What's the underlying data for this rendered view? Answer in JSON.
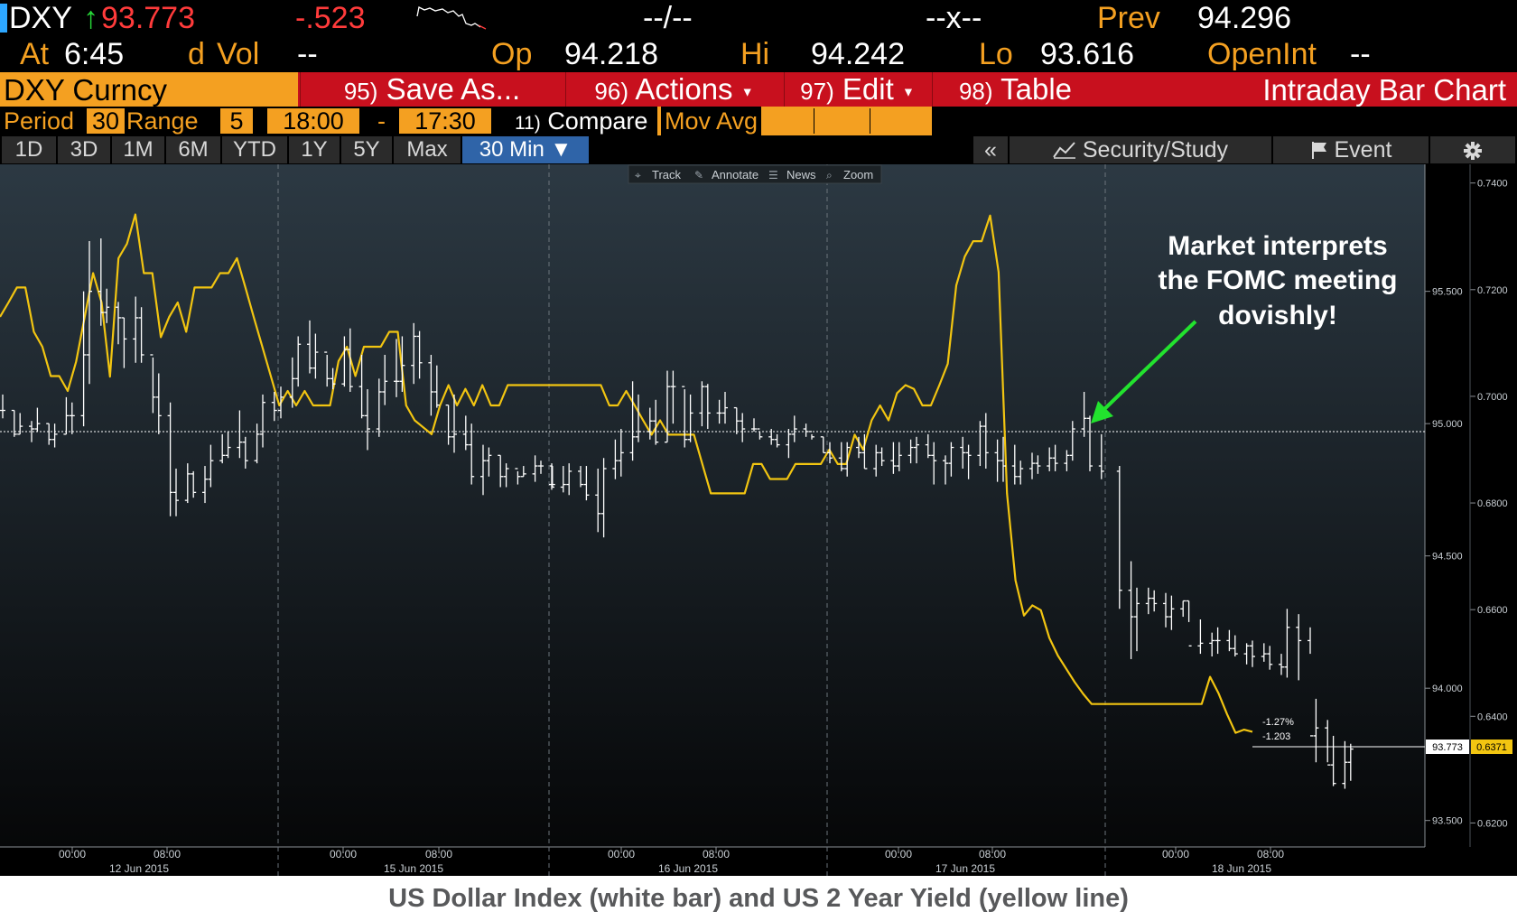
{
  "quote": {
    "ticker": "DXY",
    "arrow": "↑",
    "last": "93.773",
    "change": "-.523",
    "bidask": "--/--",
    "size": "--x--",
    "prev_label": "Prev",
    "prev": "94.296",
    "at_label": "At",
    "time": "6:45",
    "d_label": "d",
    "vol_label": "Vol",
    "vol": "--",
    "open_label": "Op",
    "open": "94.218",
    "high_label": "Hi",
    "high": "94.242",
    "low_label": "Lo",
    "low": "93.616",
    "oi_label": "OpenInt",
    "oi": "--"
  },
  "title_bar": {
    "security": "DXY Curncy",
    "save_num": "95)",
    "save_label": "Save As...",
    "actions_num": "96)",
    "actions_label": "Actions",
    "edit_num": "97)",
    "edit_label": "Edit",
    "table_num": "98)",
    "table_label": "Table",
    "chart_title": "Intraday Bar Chart"
  },
  "settings": {
    "period_label": "Period",
    "period": "30",
    "range_label": "Range",
    "days": "5",
    "start_time": "18:00",
    "dash": "-",
    "end_time": "17:30",
    "compare_num": "11)",
    "compare_label": "Compare",
    "movavg_label": "Mov Avg"
  },
  "ranges": [
    "1D",
    "3D",
    "1M",
    "6M",
    "YTD",
    "1Y",
    "5Y",
    "Max"
  ],
  "active_range": "30 Min ▼",
  "tools_bar": {
    "collapse": "«",
    "security_study": "Security/Study",
    "event": "Event",
    "settings_icon": "gear-icon"
  },
  "chart_toolbar": [
    "Track",
    "Annotate",
    "News",
    "Zoom"
  ],
  "annotation": {
    "lines": [
      "Market interprets",
      "the FOMC meeting",
      "dovishly!"
    ],
    "arrow_color": "#22e22e"
  },
  "caption": "US Dollar Index (white bar) and US 2 Year Yield (yellow line)",
  "colors": {
    "accent_orange": "#f4a021",
    "title_red": "#c8101e",
    "last_price_red": "#ff3b3b",
    "up_arrow": "#27d838",
    "yield_yellow": "#f2c511",
    "index_white": "#ffffff"
  },
  "chart_data": {
    "type": "line",
    "x_tick_labels": [
      "00:00",
      "08:00",
      "00:00",
      "08:00",
      "00:00",
      "08:00",
      "00:00",
      "08:00",
      "00:00",
      "08:00"
    ],
    "date_labels": [
      "12 Jun 2015",
      "15 Jun 2015",
      "16 Jun 2015",
      "17 Jun 2015",
      "18 Jun 2015"
    ],
    "left_axis": {
      "ticks": [
        95.5,
        95.0,
        94.5,
        94.0,
        93.5
      ],
      "labels": [
        "95.500",
        "95.000",
        "94.500",
        "94.000",
        "93.500"
      ],
      "range": [
        93.4,
        95.98
      ]
    },
    "right_axis": {
      "ticks": [
        0.74,
        0.72,
        0.7,
        0.68,
        0.66,
        0.64,
        0.62
      ],
      "labels": [
        "0.7400",
        "0.7200",
        "0.7000",
        "0.6800",
        "0.6600",
        "0.6400",
        "0.6200"
      ],
      "range": [
        0.6155,
        0.7435
      ]
    },
    "reference_level": 94.97,
    "last_dxy": "93.773",
    "last_yield": "0.6371",
    "change_pct": "-1.27%",
    "change_abs": "-1.203",
    "series": [
      {
        "name": "US Dollar Index",
        "kind": "bar",
        "axis": "left",
        "close": [
          95.05,
          94.96,
          94.99,
          94.98,
          95.0,
          94.94,
          94.96,
          95.03,
          95.03,
          95.26,
          95.5,
          95.42,
          95.44,
          95.4,
          95.32,
          95.4,
          95.26,
          95.1,
          95.03,
          94.74,
          94.71,
          94.81,
          94.74,
          94.79,
          94.86,
          94.88,
          94.91,
          94.93,
          94.86,
          94.96,
          95.08,
          95.05,
          95.1,
          95.17,
          95.3,
          95.21,
          95.27,
          95.17,
          95.15,
          95.28,
          95.14,
          95.03,
          94.98,
          95.12,
          95.16,
          95.16,
          95.22,
          95.33,
          95.23,
          95.12,
          95.07,
          94.95,
          94.96,
          94.92,
          94.8,
          94.86,
          94.88,
          94.8,
          94.83,
          94.8,
          94.81,
          94.84,
          94.84,
          94.77,
          94.76,
          94.77,
          94.82,
          94.77,
          94.73,
          94.66,
          94.83,
          94.86,
          94.89,
          94.95,
          94.97,
          95.01,
          94.93,
          95.14,
          95.14,
          94.94,
          95.04,
          95.14,
          95.04,
          95.04,
          95.06,
          95.01,
          94.98,
          94.98,
          94.95,
          94.94,
          94.92,
          94.96,
          94.98,
          94.97,
          94.95,
          94.89,
          94.87,
          94.83,
          94.91,
          94.89,
          94.83,
          94.89,
          94.86,
          94.84,
          94.88,
          94.91,
          94.92,
          94.88,
          94.86,
          94.85,
          94.91,
          94.89,
          94.88,
          94.99,
          94.89,
          94.86,
          94.84,
          94.8,
          94.83,
          94.85,
          94.84,
          94.87,
          94.85,
          94.88,
          94.98,
          95.02,
          94.84,
          94.82,
          94.37,
          94.27,
          94.32,
          94.34,
          94.32,
          94.27,
          94.3,
          94.33,
          94.16,
          94.17,
          94.18,
          94.18,
          94.15,
          94.13,
          94.16,
          94.12,
          94.13,
          94.09,
          94.08,
          94.23,
          94.18,
          93.82,
          93.85,
          93.71,
          93.64,
          93.72,
          93.77
        ],
        "high": [
          95.11,
          95.05,
          95.04,
          95.01,
          95.06,
          95.0,
          95.0,
          95.1,
          95.08,
          95.5,
          95.69,
          95.7,
          95.51,
          95.46,
          95.4,
          95.48,
          95.44,
          95.25,
          95.19,
          95.08,
          94.83,
          94.85,
          94.82,
          94.84,
          94.92,
          94.96,
          94.97,
          95.05,
          94.95,
          95.0,
          95.11,
          95.12,
          95.14,
          95.25,
          95.33,
          95.39,
          95.34,
          95.26,
          95.21,
          95.33,
          95.36,
          95.26,
          95.13,
          95.17,
          95.26,
          95.32,
          95.33,
          95.38,
          95.35,
          95.26,
          95.22,
          95.07,
          95.11,
          95.03,
          95.0,
          94.92,
          94.91,
          94.88,
          94.85,
          94.82,
          94.84,
          94.88,
          94.86,
          94.84,
          94.85,
          94.84,
          94.85,
          94.84,
          94.84,
          94.83,
          94.87,
          94.94,
          94.98,
          95.16,
          95.11,
          95.06,
          95.09,
          95.2,
          95.2,
          95.13,
          95.11,
          95.16,
          95.15,
          95.09,
          95.12,
          95.06,
          95.04,
          95.02,
          94.97,
          94.98,
          94.96,
          94.98,
          95.03,
          95.0,
          94.96,
          94.95,
          94.93,
          94.93,
          94.93,
          94.95,
          94.96,
          94.92,
          94.91,
          94.93,
          94.93,
          94.94,
          94.95,
          94.96,
          94.93,
          94.88,
          94.93,
          94.95,
          94.92,
          95.01,
          95.04,
          94.94,
          94.95,
          94.92,
          94.86,
          94.89,
          94.88,
          94.91,
          94.92,
          94.9,
          95.01,
          95.12,
          95.03,
          94.96,
          94.84,
          94.48,
          94.38,
          94.38,
          94.37,
          94.36,
          94.35,
          94.33,
          94.33,
          94.26,
          94.21,
          94.23,
          94.22,
          94.2,
          94.17,
          94.18,
          94.17,
          94.16,
          94.13,
          94.3,
          94.28,
          94.23,
          93.96,
          93.88,
          93.82,
          93.8,
          93.79
        ],
        "low": [
          95.02,
          94.95,
          94.96,
          94.93,
          94.97,
          94.92,
          94.91,
          94.96,
          94.96,
          94.99,
          95.15,
          95.37,
          95.38,
          95.3,
          95.21,
          95.23,
          95.23,
          95.04,
          94.96,
          94.65,
          94.65,
          94.7,
          94.72,
          94.7,
          94.76,
          94.85,
          94.87,
          94.87,
          94.83,
          94.85,
          94.91,
          95.01,
          95.02,
          95.06,
          95.14,
          95.19,
          95.17,
          95.14,
          95.13,
          95.14,
          95.12,
          95.02,
          94.9,
          94.95,
          95.07,
          95.1,
          95.12,
          95.15,
          95.17,
          95.03,
          95.06,
          94.92,
          94.89,
          94.9,
          94.77,
          94.73,
          94.8,
          94.76,
          94.76,
          94.77,
          94.8,
          94.78,
          94.81,
          94.76,
          94.75,
          94.74,
          94.73,
          94.76,
          94.71,
          94.59,
          94.57,
          94.79,
          94.8,
          94.86,
          94.93,
          94.94,
          94.92,
          94.93,
          95.0,
          94.91,
          94.93,
          94.99,
          94.98,
          95.0,
          95.0,
          94.96,
          94.93,
          94.97,
          94.94,
          94.92,
          94.91,
          94.87,
          94.93,
          94.95,
          94.94,
          94.89,
          94.85,
          94.82,
          94.8,
          94.87,
          94.83,
          94.8,
          94.84,
          94.81,
          94.82,
          94.85,
          94.85,
          94.87,
          94.77,
          94.77,
          94.8,
          94.83,
          94.79,
          94.84,
          94.83,
          94.78,
          94.78,
          94.77,
          94.77,
          94.79,
          94.81,
          94.82,
          94.82,
          94.82,
          94.86,
          94.95,
          94.82,
          94.79,
          94.3,
          94.11,
          94.14,
          94.28,
          94.29,
          94.23,
          94.22,
          94.27,
          94.25,
          94.13,
          94.12,
          94.13,
          94.14,
          94.12,
          94.09,
          94.08,
          94.1,
          94.07,
          94.05,
          94.04,
          94.03,
          94.13,
          93.72,
          93.72,
          93.63,
          93.62,
          93.65
        ]
      },
      {
        "name": "US 2 Year Yield",
        "kind": "line",
        "axis": "right",
        "values": [
          0.7149,
          0.7176,
          0.7204,
          0.7204,
          0.7121,
          0.7093,
          0.7038,
          0.7038,
          0.701,
          0.7065,
          0.7148,
          0.7231,
          0.7176,
          0.7037,
          0.7259,
          0.7286,
          0.7341,
          0.7231,
          0.7231,
          0.7111,
          0.7149,
          0.7176,
          0.7121,
          0.7204,
          0.7204,
          0.7204,
          0.7231,
          0.7231,
          0.7259,
          0.7204,
          0.7148,
          0.7093,
          0.7038,
          0.6983,
          0.701,
          0.6983,
          0.701,
          0.6983,
          0.6983,
          0.6983,
          0.7066,
          0.7093,
          0.7038,
          0.7093,
          0.7093,
          0.7093,
          0.7121,
          0.7121,
          0.6983,
          0.6955,
          0.6942,
          0.6929,
          0.6983,
          0.7021,
          0.6983,
          0.7014,
          0.6983,
          0.7021,
          0.6983,
          0.6983,
          0.7021,
          0.7021,
          0.7021,
          0.7021,
          0.7021,
          0.7021,
          0.7021,
          0.7021,
          0.7021,
          0.7021,
          0.7021,
          0.7021,
          0.6983,
          0.6983,
          0.701,
          0.6983,
          0.6955,
          0.6928,
          0.6955,
          0.6928,
          0.6928,
          0.6928,
          0.6928,
          0.6873,
          0.6818,
          0.6818,
          0.6818,
          0.6818,
          0.6818,
          0.6873,
          0.6873,
          0.6845,
          0.6845,
          0.6845,
          0.6873,
          0.6873,
          0.6873,
          0.6873,
          0.69,
          0.6873,
          0.6873,
          0.6928,
          0.69,
          0.6955,
          0.6983,
          0.6955,
          0.7006,
          0.7021,
          0.7014,
          0.6983,
          0.6983,
          0.7021,
          0.7061,
          0.7208,
          0.7262,
          0.7291,
          0.7291,
          0.7339,
          0.7233,
          0.6818,
          0.6655,
          0.6589,
          0.6608,
          0.6599,
          0.6547,
          0.6514,
          0.6489,
          0.6464,
          0.6442,
          0.6423,
          0.6423,
          0.6423,
          0.6423,
          0.6423,
          0.6423,
          0.6423,
          0.6423,
          0.6423,
          0.6423,
          0.6423,
          0.6423,
          0.6423,
          0.6423,
          0.6474,
          0.6443,
          0.6404,
          0.6369,
          0.6375,
          0.6371
        ]
      }
    ]
  }
}
